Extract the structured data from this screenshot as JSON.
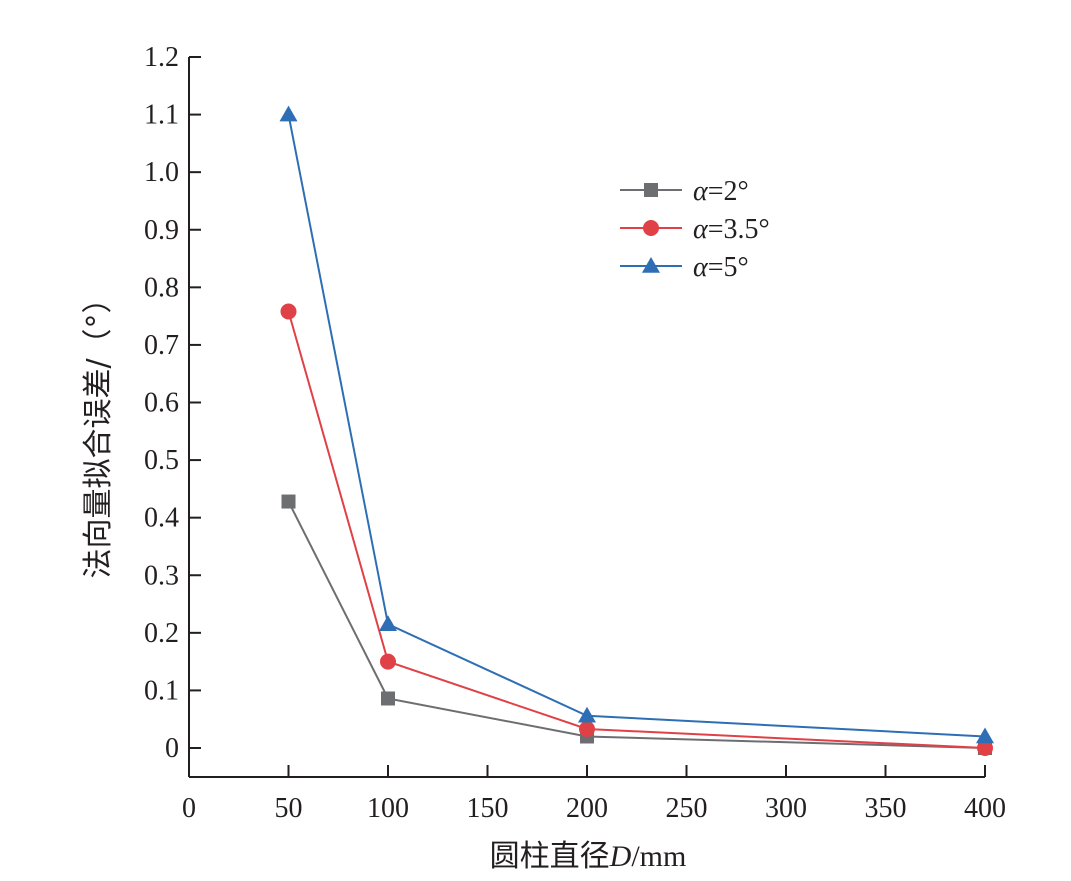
{
  "chart_data": {
    "type": "line",
    "x": [
      50,
      100,
      200,
      400
    ],
    "xlabel_parts": [
      "圆柱直径",
      "D",
      "/mm"
    ],
    "ylabel": "法向量拟合误差/（°）",
    "xlim": [
      0,
      400
    ],
    "ylim": [
      0,
      1.2
    ],
    "xticks": [
      0,
      50,
      100,
      150,
      200,
      250,
      300,
      350,
      400
    ],
    "yticks": [
      0,
      0.1,
      0.2,
      0.3,
      0.4,
      0.5,
      0.6,
      0.7,
      0.8,
      0.9,
      1.0,
      1.1,
      1.2
    ],
    "ytick_labels": [
      "0",
      "0.1",
      "0.2",
      "0.3",
      "0.4",
      "0.5",
      "0.6",
      "0.7",
      "0.8",
      "0.9",
      "1.0",
      "1.1",
      "1.2"
    ],
    "grid": false,
    "legend_position": "top-right",
    "series": [
      {
        "name": "α=2°",
        "name_symbol": "α",
        "name_rest": "=2°",
        "marker": "square",
        "color": "#6d6e71",
        "values": [
          0.428,
          0.086,
          0.02,
          0.0
        ]
      },
      {
        "name": "α=3.5°",
        "name_symbol": "α",
        "name_rest": "=3.5°",
        "marker": "circle",
        "color": "#e04146",
        "values": [
          0.758,
          0.15,
          0.033,
          0.0
        ]
      },
      {
        "name": "α=5°",
        "name_symbol": "α",
        "name_rest": "=5°",
        "marker": "triangle",
        "color": "#2e6eb5",
        "values": [
          1.1,
          0.215,
          0.056,
          0.02
        ]
      }
    ]
  }
}
